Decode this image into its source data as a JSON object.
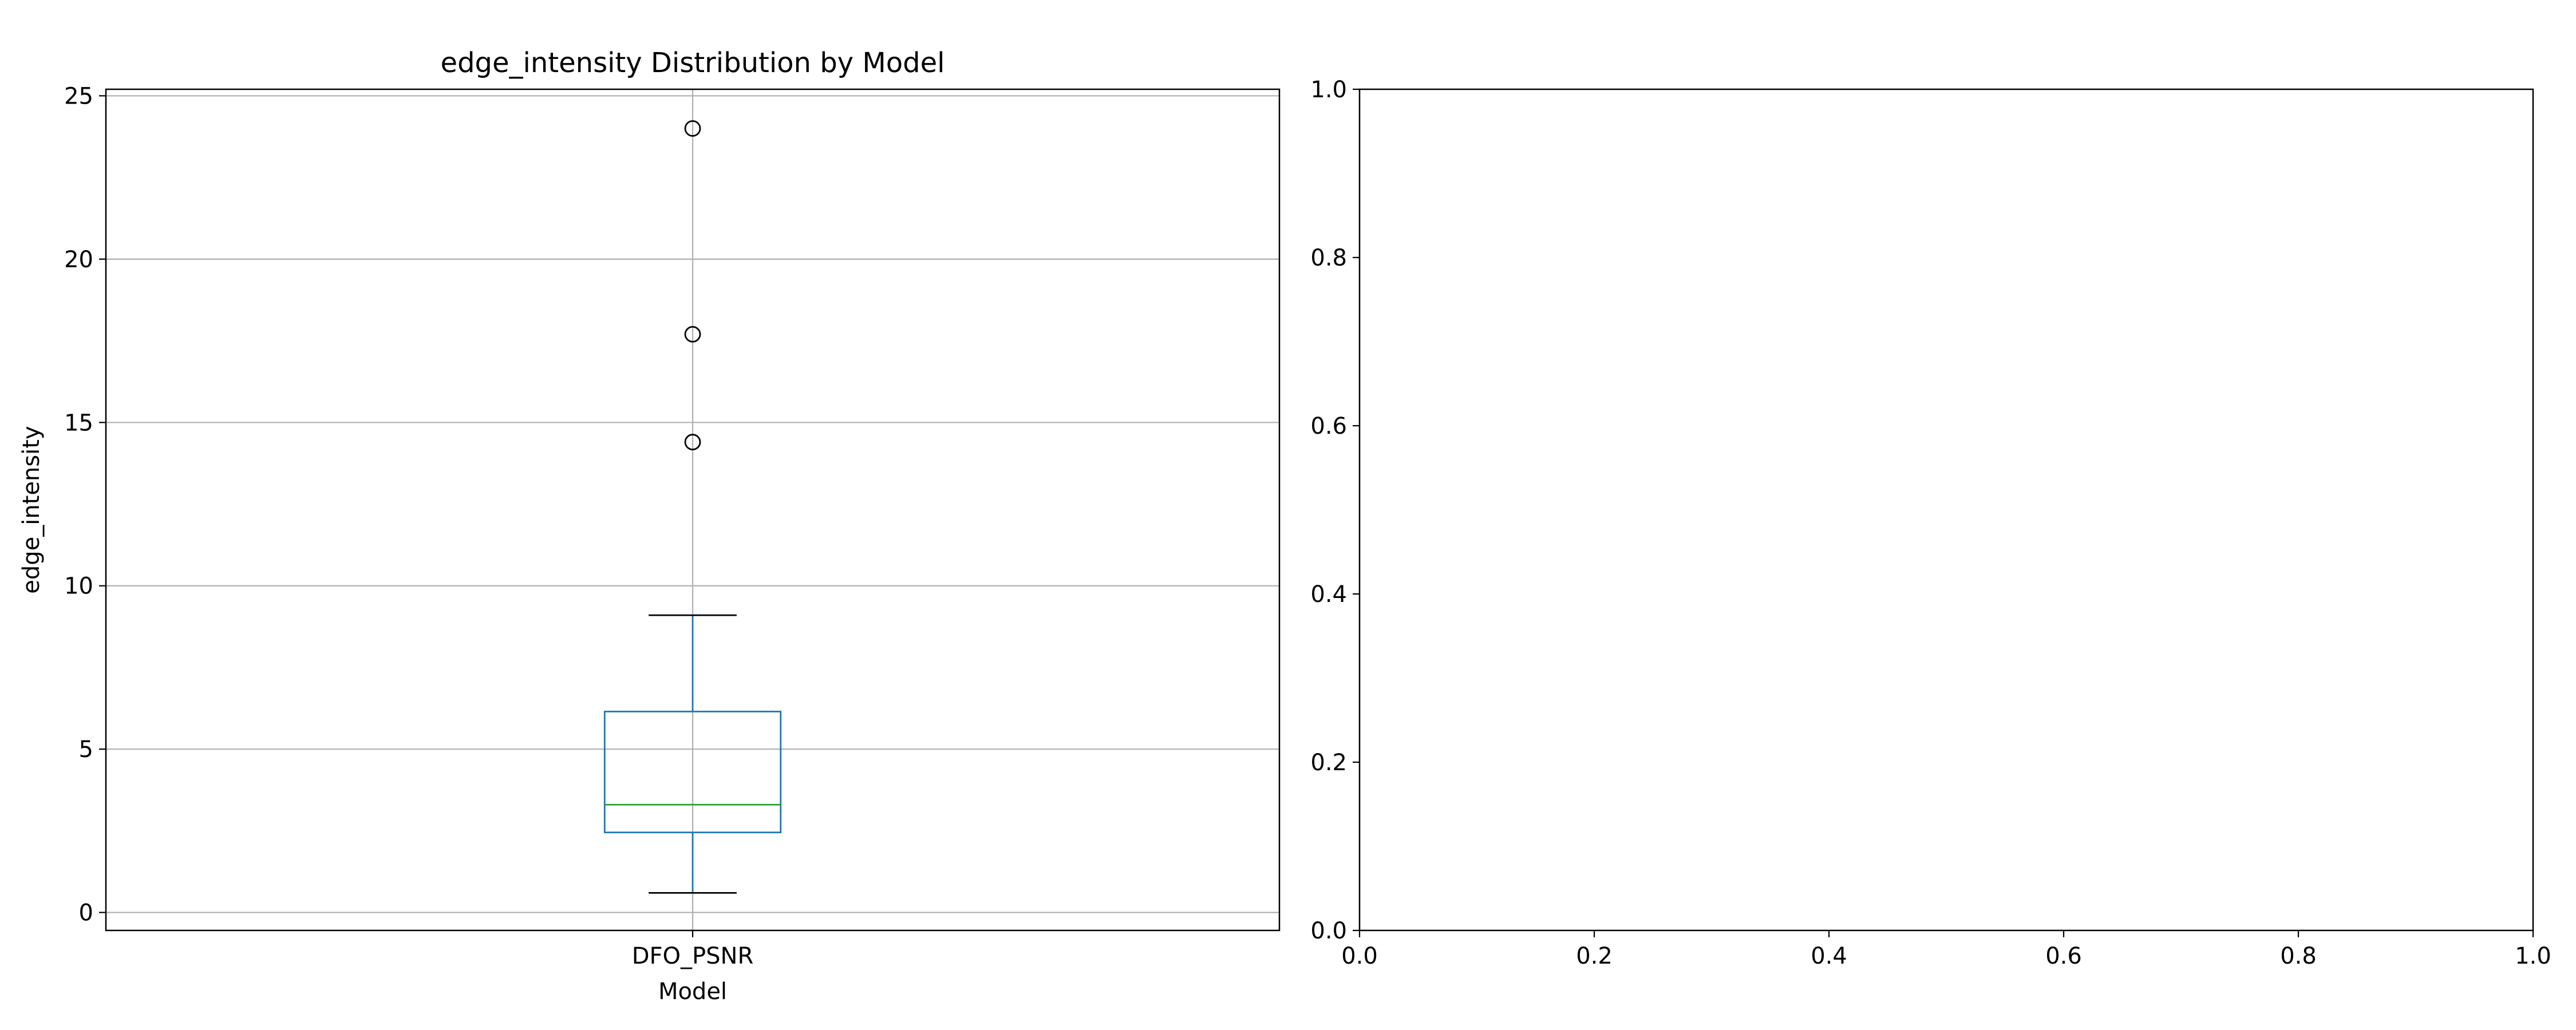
{
  "chart_data": [
    {
      "type": "box",
      "title": "edge_intensity Distribution by Model",
      "xlabel": "Model",
      "ylabel": "edge_intensity",
      "categories": [
        "DFO_PSNR"
      ],
      "boxes": [
        {
          "category": "DFO_PSNR",
          "whisker_low": 0.6,
          "q1": 2.45,
          "median": 3.3,
          "q3": 6.15,
          "whisker_high": 9.1,
          "outliers": [
            14.4,
            17.7,
            24.0
          ]
        }
      ],
      "ylim": [
        -0.55,
        25.2
      ],
      "yticks": [
        0,
        5,
        10,
        15,
        20,
        25
      ],
      "grid": true,
      "colors": {
        "box": "#1f77b4",
        "median": "#2ca02c",
        "whisker_cap": "#000000",
        "grid": "#b0b0b0"
      }
    },
    {
      "type": "empty",
      "xlim": [
        0,
        1
      ],
      "ylim": [
        0,
        1
      ],
      "xticks": [
        "0.0",
        "0.2",
        "0.4",
        "0.6",
        "0.8",
        "1.0"
      ],
      "yticks": [
        "0.0",
        "0.2",
        "0.4",
        "0.6",
        "0.8",
        "1.0"
      ],
      "grid": false
    }
  ]
}
